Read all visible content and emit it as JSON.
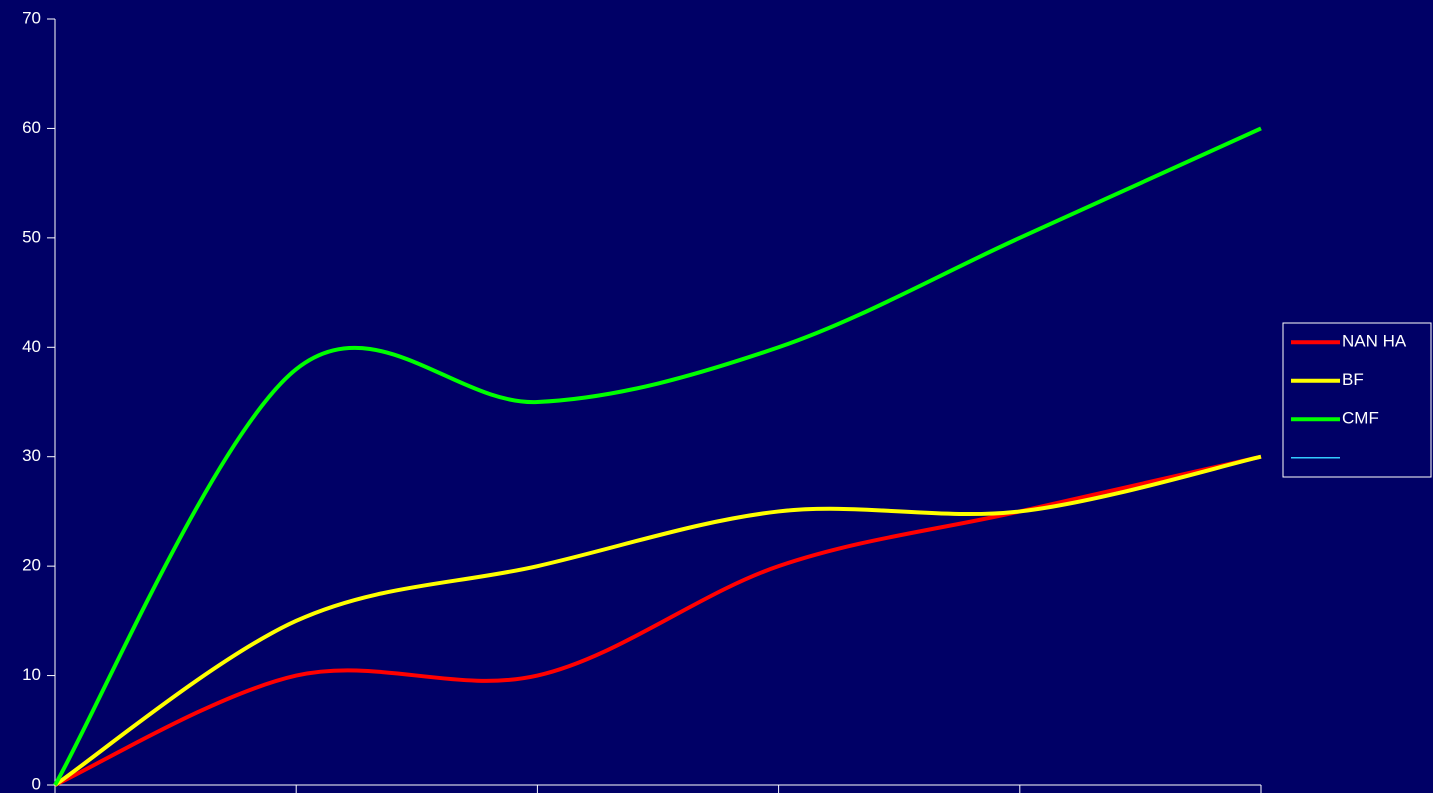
{
  "chart_data": {
    "type": "line",
    "smooth": true,
    "background": "#000066",
    "axis_color": "#ffffff",
    "categories": [
      null,
      null,
      null,
      null,
      null,
      null
    ],
    "series": [
      {
        "name": "NAN HA",
        "color": "#ff0000",
        "values": [
          0,
          10,
          10,
          20,
          25,
          30
        ]
      },
      {
        "name": "BF",
        "color": "#ffff00",
        "values": [
          0,
          15,
          20,
          25,
          25,
          30
        ]
      },
      {
        "name": "CMF",
        "color": "#00ff00",
        "values": [
          0,
          38,
          35,
          40,
          50,
          60
        ]
      },
      {
        "name": null,
        "color": "#33ccff",
        "values": [
          null,
          null,
          null,
          null,
          null,
          null
        ]
      }
    ],
    "ylim": [
      0,
      70
    ],
    "yticks": [
      0,
      10,
      20,
      30,
      40,
      50,
      60,
      70
    ],
    "grid": false,
    "legend": "right"
  }
}
